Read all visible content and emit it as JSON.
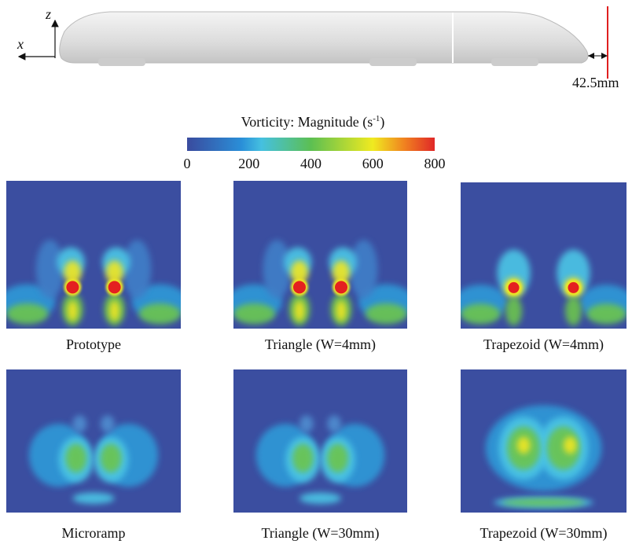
{
  "annotations": {
    "z_axis": "z",
    "x_axis": "x",
    "distance": "42.5mm"
  },
  "colorbar": {
    "title": "Vorticity: Magnitude (s",
    "title_superscript": "-1",
    "title_end": ")",
    "ticks": [
      0,
      200,
      400,
      600,
      800
    ]
  },
  "panels": [
    {
      "label": "Prototype"
    },
    {
      "label": "Triangle (W=4mm)"
    },
    {
      "label": "Trapezoid (W=4mm)"
    },
    {
      "label": "Microramp"
    },
    {
      "label": "Triangle (W=30mm)"
    },
    {
      "label": "Trapezoid (W=30mm)"
    }
  ]
}
